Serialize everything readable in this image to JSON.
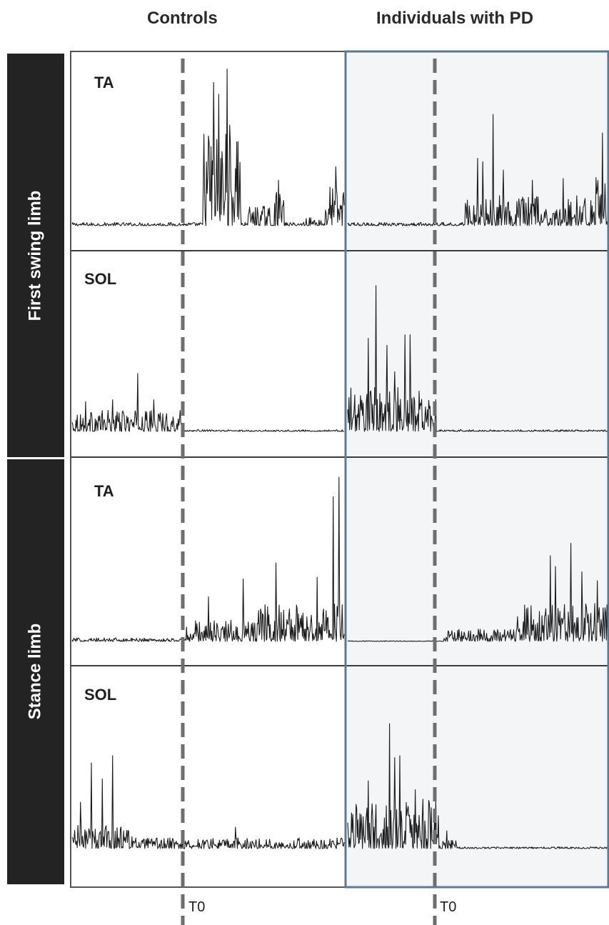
{
  "headers": {
    "controls": "Controls",
    "pd": "Individuals with PD"
  },
  "row_groups": {
    "first_swing": "First swing limb",
    "stance": "Stance limb"
  },
  "marker_label": "T0",
  "colors": {
    "trace": "#1c1c1c",
    "dashed_line": "#6e6e6e",
    "pd_panel_bg": "#f4f5f7",
    "pd_panel_border": "#5c7a93",
    "group_bar": "#232323",
    "frame": "#555555"
  },
  "chart_data": [
    {
      "type": "line",
      "group": "First swing limb",
      "muscle": "TA",
      "panels": [
        {
          "condition": "Controls",
          "bursts": [
            {
              "start": 0.0,
              "end": 1.0,
              "amp": 0.02
            },
            {
              "start": 0.48,
              "end": 0.62,
              "amp": 0.62
            },
            {
              "start": 0.64,
              "end": 0.73,
              "amp": 0.12
            },
            {
              "start": 0.74,
              "end": 0.78,
              "amp": 0.2
            },
            {
              "start": 0.85,
              "end": 0.92,
              "amp": 0.05
            },
            {
              "start": 0.93,
              "end": 1.0,
              "amp": 0.25
            }
          ],
          "peaks": [
            {
              "t": 0.57,
              "y": 0.93
            },
            {
              "t": 0.52,
              "y": 0.85
            },
            {
              "t": 0.54,
              "y": 0.78
            },
            {
              "t": 0.61,
              "y": 0.5
            },
            {
              "t": 0.76,
              "y": 0.27
            },
            {
              "t": 0.97,
              "y": 0.35
            }
          ]
        },
        {
          "condition": "Individuals with PD",
          "bursts": [
            {
              "start": 0.0,
              "end": 1.0,
              "amp": 0.02
            },
            {
              "start": 0.45,
              "end": 0.92,
              "amp": 0.18
            },
            {
              "start": 0.93,
              "end": 1.0,
              "amp": 0.3
            }
          ],
          "peaks": [
            {
              "t": 0.56,
              "y": 0.66
            },
            {
              "t": 0.5,
              "y": 0.4
            },
            {
              "t": 0.52,
              "y": 0.38
            },
            {
              "t": 0.6,
              "y": 0.33
            },
            {
              "t": 0.71,
              "y": 0.27
            },
            {
              "t": 0.83,
              "y": 0.28
            },
            {
              "t": 0.98,
              "y": 0.55
            }
          ]
        }
      ]
    },
    {
      "type": "line",
      "group": "First swing limb",
      "muscle": "SOL",
      "panels": [
        {
          "condition": "Controls",
          "bursts": [
            {
              "start": 0.0,
              "end": 0.41,
              "amp": 0.12
            },
            {
              "start": 0.41,
              "end": 1.0,
              "amp": 0.01
            }
          ],
          "peaks": [
            {
              "t": 0.24,
              "y": 0.33
            },
            {
              "t": 0.05,
              "y": 0.17
            },
            {
              "t": 0.15,
              "y": 0.18
            },
            {
              "t": 0.3,
              "y": 0.18
            }
          ]
        },
        {
          "condition": "Individuals with PD",
          "bursts": [
            {
              "start": 0.0,
              "end": 0.34,
              "amp": 0.25
            },
            {
              "start": 0.34,
              "end": 1.0,
              "amp": 0.01
            }
          ],
          "peaks": [
            {
              "t": 0.11,
              "y": 0.83
            },
            {
              "t": 0.08,
              "y": 0.53
            },
            {
              "t": 0.15,
              "y": 0.49
            },
            {
              "t": 0.22,
              "y": 0.55
            },
            {
              "t": 0.24,
              "y": 0.55
            },
            {
              "t": 0.18,
              "y": 0.34
            }
          ]
        }
      ]
    },
    {
      "type": "line",
      "group": "Stance limb",
      "muscle": "TA",
      "panels": [
        {
          "condition": "Controls",
          "bursts": [
            {
              "start": 0.0,
              "end": 0.42,
              "amp": 0.02
            },
            {
              "start": 0.42,
              "end": 0.68,
              "amp": 0.12
            },
            {
              "start": 0.68,
              "end": 1.0,
              "amp": 0.22
            }
          ],
          "peaks": [
            {
              "t": 0.98,
              "y": 0.92
            },
            {
              "t": 0.96,
              "y": 0.81
            },
            {
              "t": 0.75,
              "y": 0.44
            },
            {
              "t": 0.9,
              "y": 0.36
            },
            {
              "t": 0.63,
              "y": 0.35
            },
            {
              "t": 0.5,
              "y": 0.25
            }
          ]
        },
        {
          "condition": "Individuals with PD",
          "bursts": [
            {
              "start": 0.0,
              "end": 0.37,
              "amp": 0.0
            },
            {
              "start": 0.37,
              "end": 0.65,
              "amp": 0.07
            },
            {
              "start": 0.65,
              "end": 1.0,
              "amp": 0.22
            }
          ],
          "peaks": [
            {
              "t": 0.86,
              "y": 0.55
            },
            {
              "t": 0.78,
              "y": 0.48
            },
            {
              "t": 0.9,
              "y": 0.39
            },
            {
              "t": 0.96,
              "y": 0.34
            },
            {
              "t": 0.8,
              "y": 0.42
            },
            {
              "t": 0.4,
              "y": 0.06
            }
          ]
        }
      ]
    },
    {
      "type": "line",
      "group": "Stance limb",
      "muscle": "SOL",
      "panels": [
        {
          "condition": "Controls",
          "bursts": [
            {
              "start": 0.0,
              "end": 0.22,
              "amp": 0.14
            },
            {
              "start": 0.22,
              "end": 1.0,
              "amp": 0.06
            }
          ],
          "peaks": [
            {
              "t": 0.07,
              "y": 0.48
            },
            {
              "t": 0.15,
              "y": 0.52
            },
            {
              "t": 0.11,
              "y": 0.39
            },
            {
              "t": 0.03,
              "y": 0.26
            },
            {
              "t": 0.6,
              "y": 0.12
            }
          ]
        },
        {
          "condition": "Individuals with PD",
          "bursts": [
            {
              "start": 0.0,
              "end": 0.35,
              "amp": 0.28
            },
            {
              "start": 0.35,
              "end": 0.42,
              "amp": 0.05
            },
            {
              "start": 0.42,
              "end": 1.0,
              "amp": 0.01
            }
          ],
          "peaks": [
            {
              "t": 0.16,
              "y": 0.7
            },
            {
              "t": 0.18,
              "y": 0.51
            },
            {
              "t": 0.2,
              "y": 0.52
            },
            {
              "t": 0.08,
              "y": 0.38
            },
            {
              "t": 0.26,
              "y": 0.33
            },
            {
              "t": 0.38,
              "y": 0.1
            }
          ]
        }
      ]
    }
  ]
}
